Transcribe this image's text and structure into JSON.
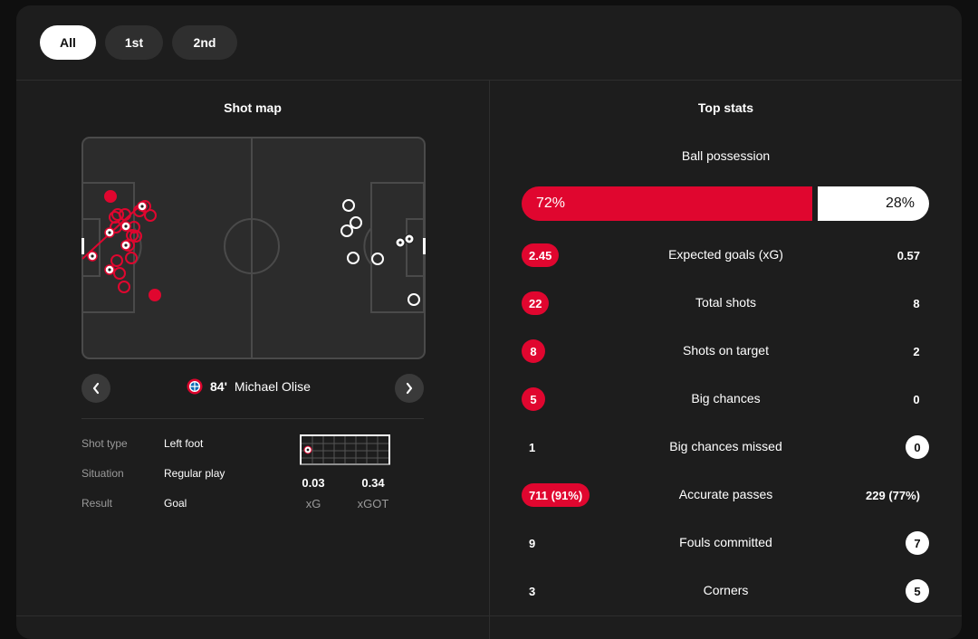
{
  "tabs": [
    {
      "label": "All",
      "active": true
    },
    {
      "label": "1st",
      "active": false
    },
    {
      "label": "2nd",
      "active": false
    }
  ],
  "shot_map": {
    "title": "Shot map",
    "selected_shot": {
      "minute": "84'",
      "player": "Michael Olise",
      "team_badge_icon": "bayern-crest-icon",
      "details": [
        {
          "label": "Shot type",
          "value": "Left foot"
        },
        {
          "label": "Situation",
          "value": "Regular play"
        },
        {
          "label": "Result",
          "value": "Goal"
        }
      ],
      "xg": {
        "value": "0.03",
        "label": "xG"
      },
      "xgot": {
        "value": "0.34",
        "label": "xGOT"
      }
    },
    "prev_icon": "chevron-left-icon",
    "next_icon": "chevron-right-icon"
  },
  "top_stats": {
    "title": "Top stats",
    "possession": {
      "label": "Ball possession",
      "home": "72%",
      "away": "28%",
      "home_fraction": 0.72
    },
    "rows": [
      {
        "label": "Expected goals (xG)",
        "home": "2.45",
        "away": "0.57",
        "leader": "home"
      },
      {
        "label": "Total shots",
        "home": "22",
        "away": "8",
        "leader": "home"
      },
      {
        "label": "Shots on target",
        "home": "8",
        "away": "2",
        "leader": "home"
      },
      {
        "label": "Big chances",
        "home": "5",
        "away": "0",
        "leader": "home"
      },
      {
        "label": "Big chances missed",
        "home": "1",
        "away": "0",
        "leader": "away"
      },
      {
        "label": "Accurate passes",
        "home": "711 (91%)",
        "away": "229 (77%)",
        "leader": "home"
      },
      {
        "label": "Fouls committed",
        "home": "9",
        "away": "7",
        "leader": "away"
      },
      {
        "label": "Corners",
        "home": "3",
        "away": "5",
        "leader": "away"
      }
    ]
  },
  "colors": {
    "home": "#e0062f",
    "away": "#ffffff",
    "card_bg": "#1d1d1d",
    "pitch": "#2c2c2c",
    "pitch_lines": "#4a4a4a"
  }
}
